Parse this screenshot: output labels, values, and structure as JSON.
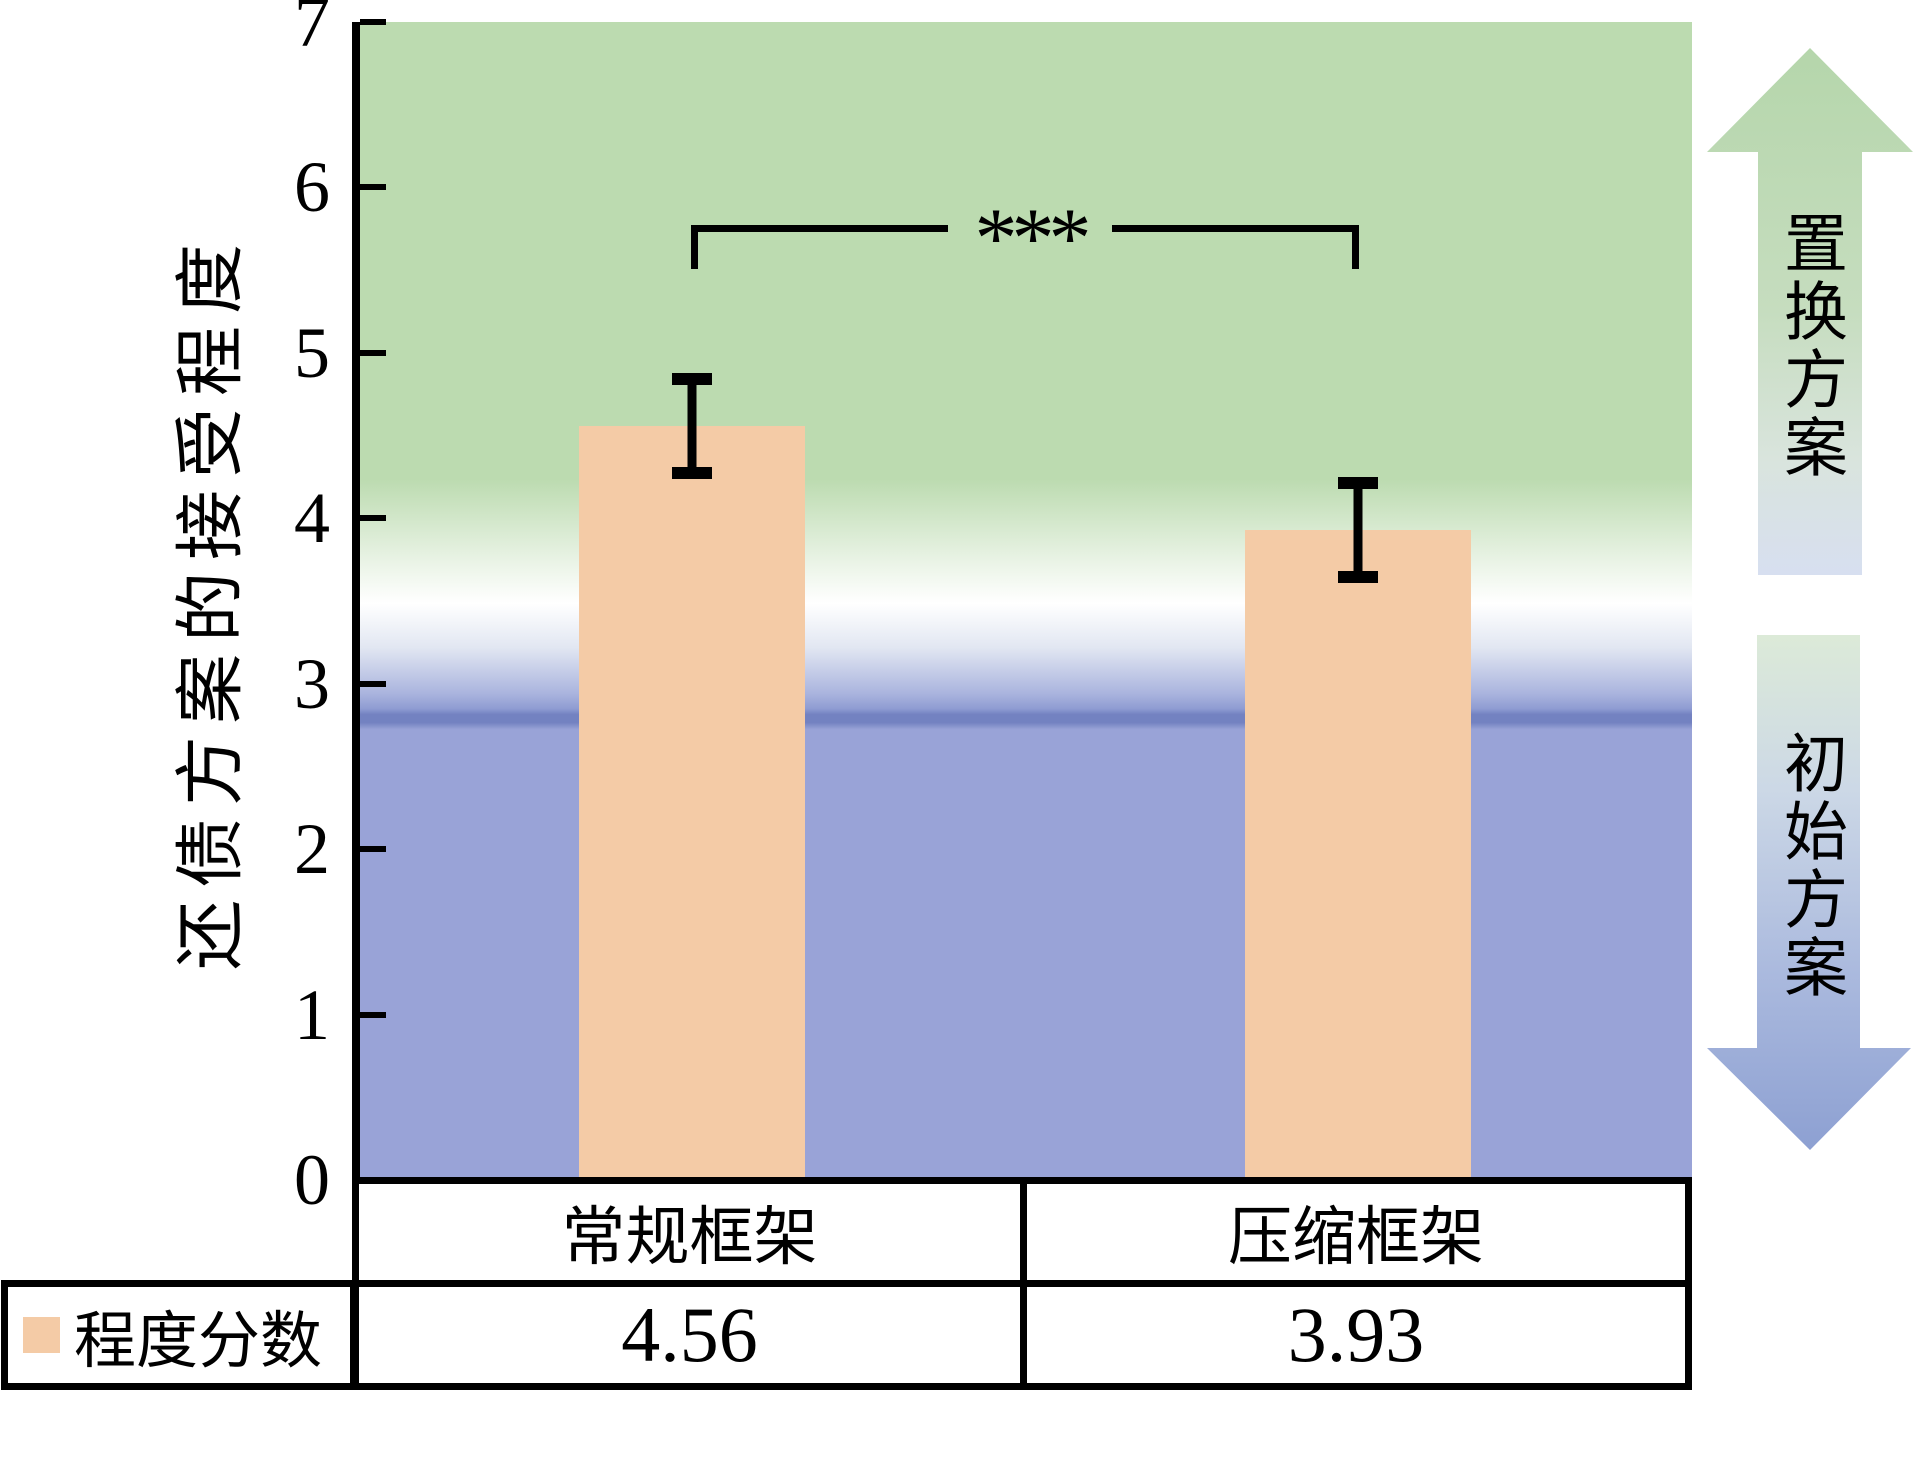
{
  "chart_data": {
    "type": "bar",
    "title": "",
    "categories": [
      "常规框架",
      "压缩框架"
    ],
    "series": [
      {
        "name": "程度分数",
        "values": [
          4.56,
          3.93
        ],
        "error_bars": [
          0.32,
          0.32
        ]
      }
    ],
    "value_labels": [
      "4.56",
      "3.93"
    ],
    "ylabel": "还债方案的接受程度",
    "ylim": [
      0,
      7
    ],
    "yticks": [
      0,
      1,
      2,
      3,
      4,
      5,
      6,
      7
    ],
    "grid": "off",
    "legend_position": "bottom-left table",
    "significance_label": "***",
    "legend": {
      "label": "程度分数",
      "swatch_color": "#f4cba6"
    },
    "regions": {
      "upper": {
        "label": "置换方案",
        "color": "#bcdbb0"
      },
      "lower": {
        "label": "初始方案",
        "color": "#99a3d7"
      }
    },
    "colors": {
      "bar": "#f4cba6",
      "green_zone": "#bcdbb0",
      "blue_zone": "#99a3d7",
      "divider_band": "#7382c1",
      "error_bar": "#000000",
      "axis": "#000000"
    }
  }
}
